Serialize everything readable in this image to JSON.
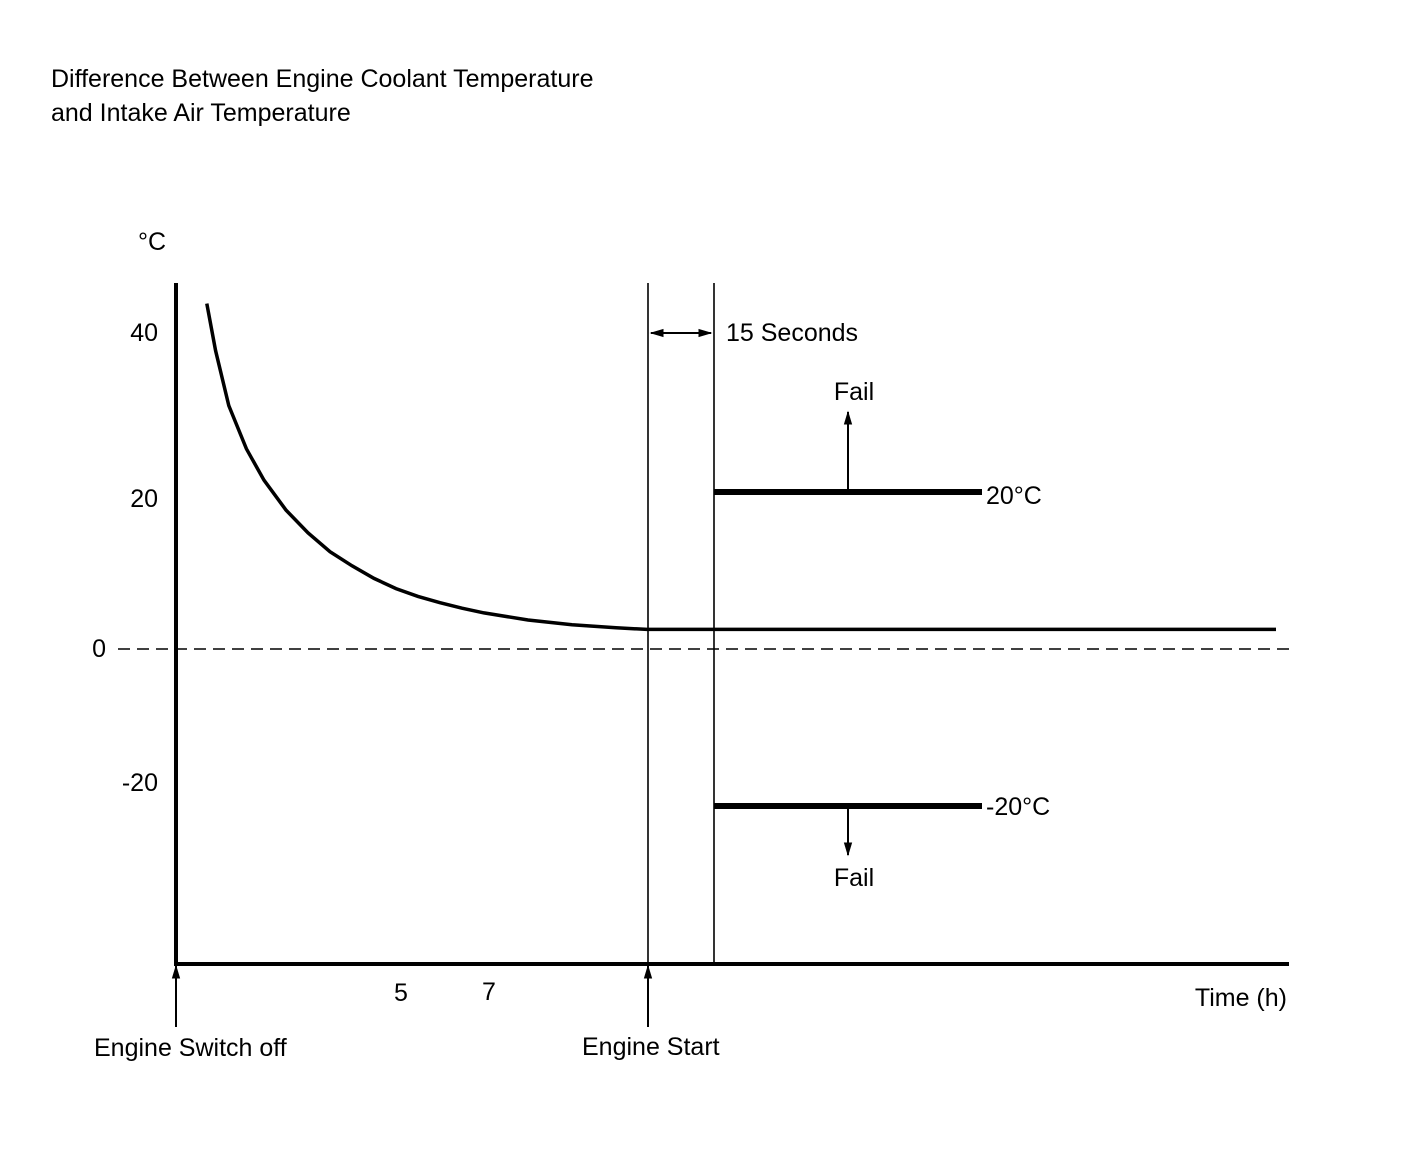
{
  "title": {
    "line1": "Difference Between Engine Coolant Temperature",
    "line2": "and Intake Air Temperature"
  },
  "chart_data": {
    "type": "line",
    "title": "Difference Between Engine Coolant Temperature and Intake Air Temperature",
    "xlabel": "Time (h)",
    "ylabel": "°C",
    "ylim": [
      -38,
      44
    ],
    "y_ticks": [
      "40",
      "20",
      "0",
      "-20"
    ],
    "x_ticks": [
      "5",
      "7"
    ],
    "grid": false,
    "series": [
      {
        "values_desc": "",
        "x": [
          0.7,
          0.9,
          1.2,
          1.6,
          2.0,
          2.5,
          3.0,
          3.5,
          4.0,
          4.5,
          5.0,
          5.5,
          6.0,
          6.5,
          7.0,
          8.0,
          9.0,
          10.0,
          10.7,
          12.2,
          18.0,
          25.0
        ],
        "values": [
          44,
          38,
          31,
          25.5,
          21.5,
          17.7,
          14.8,
          12.4,
          10.6,
          9.0,
          7.7,
          6.7,
          5.9,
          5.2,
          4.6,
          3.7,
          3.1,
          2.7,
          2.5,
          2.5,
          2.5,
          2.5
        ]
      }
    ],
    "reference_line": {
      "y": 0,
      "style": "dashed"
    },
    "thresholds": [
      {
        "value": 20,
        "label": "20°C",
        "arrow_label": "Fail",
        "direction": "up"
      },
      {
        "value": -20,
        "label": "-20°C",
        "arrow_label": "Fail",
        "direction": "down"
      }
    ],
    "interval": {
      "label": "15 Seconds"
    },
    "events": [
      {
        "label": "Engine Switch off"
      },
      {
        "label": "Engine Start"
      }
    ]
  }
}
